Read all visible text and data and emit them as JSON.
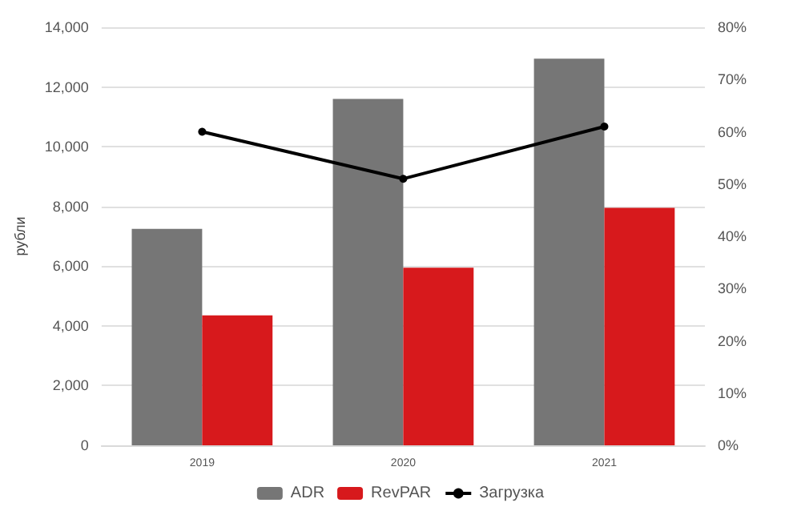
{
  "chart_data": {
    "type": "bar",
    "ylabel": "рубли",
    "categories": [
      "2019",
      "2020",
      "2021"
    ],
    "series": [
      {
        "name": "ADR",
        "color": "#767676",
        "values": [
          7250,
          11600,
          12950
        ]
      },
      {
        "name": "RevPAR",
        "color": "#d7191c",
        "values": [
          4350,
          5950,
          7950
        ]
      },
      {
        "name": "Загрузка",
        "type": "line",
        "axis": "y2",
        "color": "#000000",
        "values": [
          60,
          51,
          61
        ]
      }
    ],
    "ylim": [
      0,
      14000
    ],
    "yticks": [
      0,
      {
        "value": 2000,
        "label": "2,000"
      },
      {
        "value": 4000,
        "label": "4,000"
      },
      {
        "value": 6000,
        "label": "6,000"
      },
      {
        "value": 8000,
        "label": "8,000"
      },
      {
        "value": 10000,
        "label": "10,000"
      },
      {
        "value": 12000,
        "label": "12,000"
      },
      {
        "value": 14000,
        "label": "14,000"
      }
    ],
    "y2lim": [
      0,
      80
    ],
    "y2ticks": [
      {
        "value": 0,
        "label": "0%"
      },
      {
        "value": 10,
        "label": "10%"
      },
      {
        "value": 20,
        "label": "20%"
      },
      {
        "value": 30,
        "label": "30%"
      },
      {
        "value": 40,
        "label": "40%"
      },
      {
        "value": 50,
        "label": "50%"
      },
      {
        "value": 60,
        "label": "60%"
      },
      {
        "value": 70,
        "label": "70%"
      },
      {
        "value": 80,
        "label": "80%"
      }
    ],
    "grid": "y",
    "legend": "bottom",
    "marker": "circle",
    "line_style": "solid"
  }
}
